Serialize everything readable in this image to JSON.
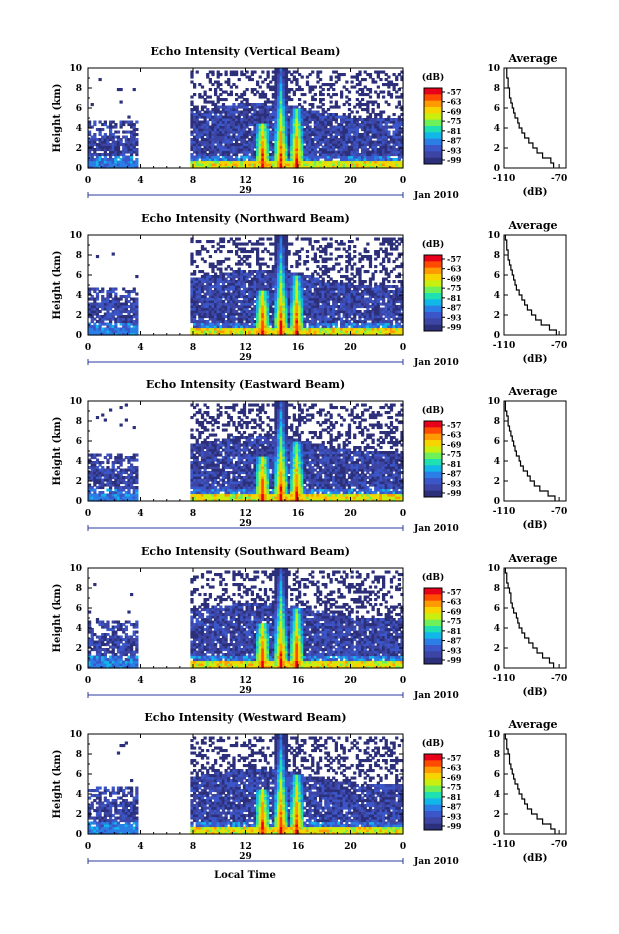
{
  "figure": {
    "xlabel": "Local Time",
    "date_day": "29",
    "date_label": "Jan 2010",
    "colorbar_unit": "(dB)",
    "colorbar_ticks": [
      "-57",
      "-63",
      "-69",
      "-75",
      "-81",
      "-87",
      "-93",
      "-99"
    ],
    "colorscale": [
      "#e8001a",
      "#ff4b00",
      "#ff9a00",
      "#f7d400",
      "#c8ef10",
      "#6ef05a",
      "#1fe0b0",
      "#12b7e9",
      "#2a7ee6",
      "#3a56c8",
      "#3c45a3",
      "#2c2f7a"
    ],
    "avg_title": "Average",
    "avg_xlabel": "(dB)"
  },
  "chart_data": [
    {
      "type": "heatmap",
      "title": "Echo Intensity (Vertical Beam)",
      "xlabel": "Local Time",
      "ylabel": "Height (km)",
      "x_ticks": [
        "0",
        "4",
        "8",
        "12",
        "16",
        "20",
        "0"
      ],
      "y_ticks": [
        "0",
        "2",
        "4",
        "6",
        "8",
        "10"
      ],
      "xlim": [
        0,
        24
      ],
      "ylim": [
        0,
        10
      ],
      "data_gap": [
        3.7,
        7.8
      ],
      "colorbar": {
        "label": "(dB)",
        "range": [
          -99,
          -57
        ]
      },
      "average_profile": {
        "title": "Average",
        "xlabel": "(dB)",
        "x_ticks": [
          "-110",
          "-70"
        ],
        "xlim": [
          -110,
          -65
        ],
        "height_km": [
          0,
          0.5,
          1,
          1.5,
          2,
          2.5,
          3,
          3.5,
          4,
          4.5,
          5,
          5.5,
          6,
          6.5,
          7,
          7.5,
          8,
          8.5,
          9,
          9.5
        ],
        "db": [
          -74,
          -76,
          -82,
          -86,
          -89,
          -92,
          -95,
          -97,
          -99,
          -100,
          -102,
          -103,
          -104,
          -105,
          -106,
          -106,
          -107,
          -107,
          -108,
          -108
        ]
      }
    },
    {
      "type": "heatmap",
      "title": "Echo Intensity (Northward Beam)",
      "xlabel": "Local Time",
      "ylabel": "Height (km)",
      "x_ticks": [
        "0",
        "4",
        "8",
        "12",
        "16",
        "20",
        "0"
      ],
      "y_ticks": [
        "0",
        "2",
        "4",
        "6",
        "8",
        "10"
      ],
      "xlim": [
        0,
        24
      ],
      "ylim": [
        0,
        10
      ],
      "data_gap": [
        3.7,
        7.8
      ],
      "colorbar": {
        "label": "(dB)",
        "range": [
          -99,
          -57
        ]
      },
      "average_profile": {
        "title": "Average",
        "xlabel": "(dB)",
        "x_ticks": [
          "-110",
          "-70"
        ],
        "xlim": [
          -110,
          -65
        ],
        "height_km": [
          0,
          0.5,
          1,
          1.5,
          2,
          2.5,
          3,
          3.5,
          4,
          4.5,
          5,
          5.5,
          6,
          6.5,
          7,
          7.5,
          8,
          8.5,
          9,
          9.5
        ],
        "db": [
          -72,
          -77,
          -83,
          -87,
          -90,
          -93,
          -95,
          -97,
          -99,
          -101,
          -102,
          -103,
          -104,
          -105,
          -106,
          -107,
          -107,
          -108,
          -108,
          -109
        ]
      }
    },
    {
      "type": "heatmap",
      "title": "Echo Intensity (Eastward Beam)",
      "xlabel": "Local Time",
      "ylabel": "Height (km)",
      "x_ticks": [
        "0",
        "4",
        "8",
        "12",
        "16",
        "20",
        "0"
      ],
      "y_ticks": [
        "0",
        "2",
        "4",
        "6",
        "8",
        "10"
      ],
      "xlim": [
        0,
        24
      ],
      "ylim": [
        0,
        10
      ],
      "data_gap": [
        3.7,
        7.8
      ],
      "colorbar": {
        "label": "(dB)",
        "range": [
          -99,
          -57
        ]
      },
      "average_profile": {
        "title": "Average",
        "xlabel": "(dB)",
        "x_ticks": [
          "-110",
          "-70"
        ],
        "xlim": [
          -110,
          -65
        ],
        "height_km": [
          0,
          0.5,
          1,
          1.5,
          2,
          2.5,
          3,
          3.5,
          4,
          4.5,
          5,
          5.5,
          6,
          6.5,
          7,
          7.5,
          8,
          8.5,
          9,
          9.5
        ],
        "db": [
          -73,
          -78,
          -84,
          -88,
          -91,
          -93,
          -96,
          -98,
          -99,
          -101,
          -102,
          -103,
          -104,
          -105,
          -106,
          -107,
          -107,
          -108,
          -109,
          -109
        ]
      }
    },
    {
      "type": "heatmap",
      "title": "Echo Intensity (Southward Beam)",
      "xlabel": "Local Time",
      "ylabel": "Height (km)",
      "x_ticks": [
        "0",
        "4",
        "8",
        "12",
        "16",
        "20",
        "0"
      ],
      "y_ticks": [
        "0",
        "2",
        "4",
        "6",
        "8",
        "10"
      ],
      "xlim": [
        0,
        24
      ],
      "ylim": [
        0,
        10
      ],
      "data_gap": [
        3.7,
        7.8
      ],
      "colorbar": {
        "label": "(dB)",
        "range": [
          -99,
          -57
        ]
      },
      "average_profile": {
        "title": "Average",
        "xlabel": "(dB)",
        "x_ticks": [
          "-110",
          "-70"
        ],
        "xlim": [
          -110,
          -65
        ],
        "height_km": [
          0,
          0.5,
          1,
          1.5,
          2,
          2.5,
          3,
          3.5,
          4,
          4.5,
          5,
          5.5,
          6,
          6.5,
          7,
          7.5,
          8,
          8.5,
          9,
          9.5
        ],
        "db": [
          -74,
          -77,
          -82,
          -86,
          -89,
          -92,
          -95,
          -97,
          -99,
          -100,
          -101,
          -103,
          -104,
          -105,
          -105,
          -106,
          -107,
          -108,
          -108,
          -109
        ]
      }
    },
    {
      "type": "heatmap",
      "title": "Echo Intensity (Westward Beam)",
      "xlabel": "Local Time",
      "ylabel": "Height (km)",
      "x_ticks": [
        "0",
        "4",
        "8",
        "12",
        "16",
        "20",
        "0"
      ],
      "y_ticks": [
        "0",
        "2",
        "4",
        "6",
        "8",
        "10"
      ],
      "xlim": [
        0,
        24
      ],
      "ylim": [
        0,
        10
      ],
      "data_gap": [
        3.7,
        7.8
      ],
      "colorbar": {
        "label": "(dB)",
        "range": [
          -99,
          -57
        ]
      },
      "average_profile": {
        "title": "Average",
        "xlabel": "(dB)",
        "x_ticks": [
          "-110",
          "-70"
        ],
        "xlim": [
          -110,
          -65
        ],
        "height_km": [
          0,
          0.5,
          1,
          1.5,
          2,
          2.5,
          3,
          3.5,
          4,
          4.5,
          5,
          5.5,
          6,
          6.5,
          7,
          7.5,
          8,
          8.5,
          9,
          9.5
        ],
        "db": [
          -73,
          -76,
          -82,
          -86,
          -90,
          -93,
          -95,
          -97,
          -99,
          -100,
          -102,
          -103,
          -104,
          -105,
          -106,
          -106,
          -107,
          -108,
          -108,
          -109
        ]
      }
    }
  ]
}
